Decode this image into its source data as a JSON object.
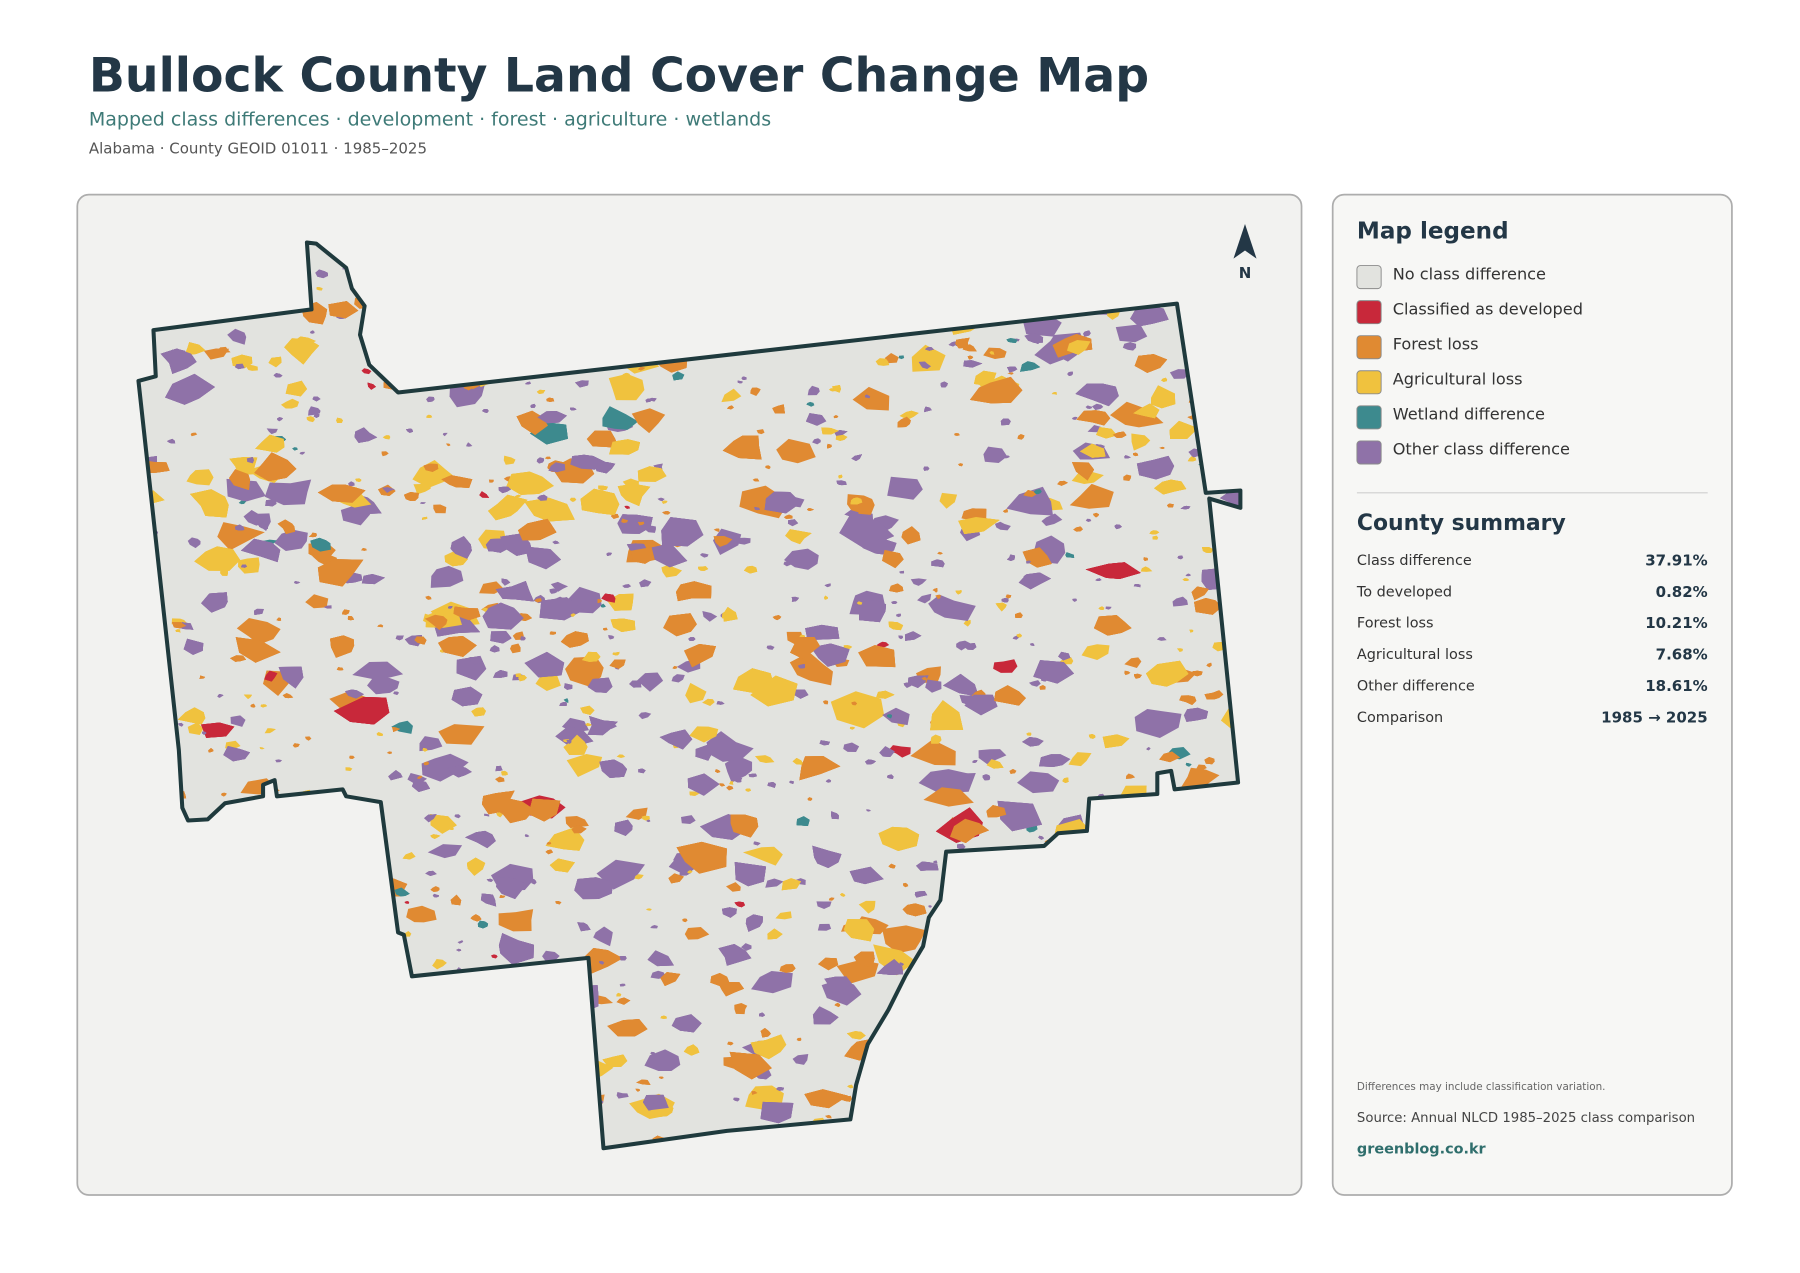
{
  "header": {
    "title": "Bullock County Land Cover Change Map",
    "subtitle": "Mapped class differences · development · forest · agriculture · wetlands",
    "meta": "Alabama · County GEOID 01011 · 1985–2025"
  },
  "map": {
    "north_label": "N"
  },
  "legend": {
    "title": "Map legend",
    "items": [
      {
        "label": "No class difference",
        "color": "#e2e3df"
      },
      {
        "label": "Classified as developed",
        "color": "#c8283a"
      },
      {
        "label": "Forest loss",
        "color": "#e08a32"
      },
      {
        "label": "Agricultural loss",
        "color": "#f0c23e"
      },
      {
        "label": "Wetland difference",
        "color": "#3d8a8e"
      },
      {
        "label": "Other class difference",
        "color": "#8f72a8"
      }
    ]
  },
  "summary": {
    "title": "County summary",
    "rows": [
      {
        "label": "Class difference",
        "value": "37.91%"
      },
      {
        "label": "To developed",
        "value": "0.82%"
      },
      {
        "label": "Forest loss",
        "value": "10.21%"
      },
      {
        "label": "Agricultural loss",
        "value": "7.68%"
      },
      {
        "label": "Other difference",
        "value": "18.61%"
      },
      {
        "label": "Comparison",
        "value": "1985 → 2025"
      }
    ]
  },
  "footer": {
    "note": "Differences may include classification variation.",
    "source": "Source: Annual NLCD 1985–2025 class comparison",
    "credit": "greenblog.co.kr"
  }
}
